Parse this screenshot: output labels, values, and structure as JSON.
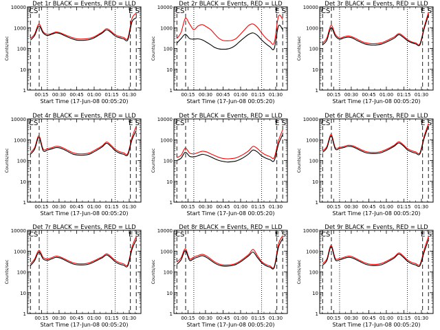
{
  "chart_data": {
    "type": "line",
    "panels": [
      {
        "title": "Det 1r BLACK = Events, RED = LLD",
        "corner_left": "CS",
        "corner_right": "E S",
        "black": [
          250,
          420,
          1200,
          560,
          420,
          480,
          560,
          520,
          420,
          340,
          285,
          250,
          245,
          250,
          270,
          320,
          420,
          560,
          780,
          600,
          400,
          330,
          290,
          260,
          1900,
          3000
        ],
        "red": [
          300,
          500,
          1500,
          640,
          480,
          520,
          620,
          570,
          470,
          390,
          330,
          290,
          285,
          290,
          310,
          360,
          470,
          620,
          900,
          680,
          460,
          380,
          340,
          310,
          2800,
          5000
        ]
      },
      {
        "title": "Det 2r BLACK = Events, RED = LLD",
        "corner_left": "CS",
        "corner_right": "E S",
        "black": [
          180,
          300,
          480,
          300,
          280,
          290,
          260,
          200,
          150,
          110,
          95,
          92,
          95,
          110,
          150,
          230,
          340,
          480,
          560,
          430,
          260,
          170,
          120,
          100,
          1200,
          800
        ],
        "red": [
          300,
          600,
          2800,
          1500,
          800,
          1200,
          1400,
          1100,
          800,
          480,
          300,
          240,
          235,
          245,
          300,
          480,
          800,
          1300,
          1500,
          1050,
          560,
          320,
          220,
          190,
          3500,
          2500
        ]
      },
      {
        "title": "Det 3r BLACK = Events, RED = LLD",
        "corner_left": "CS",
        "corner_right": "E S",
        "black": [
          150,
          250,
          1000,
          400,
          280,
          320,
          350,
          320,
          250,
          200,
          165,
          150,
          145,
          150,
          165,
          200,
          250,
          320,
          460,
          350,
          240,
          190,
          165,
          150,
          900,
          4000
        ],
        "red": [
          180,
          320,
          1300,
          480,
          320,
          360,
          400,
          360,
          290,
          230,
          190,
          175,
          170,
          175,
          190,
          230,
          290,
          370,
          520,
          400,
          270,
          210,
          185,
          170,
          1100,
          5500
        ]
      },
      {
        "title": "Det 4r BLACK = Events, RED = LLD",
        "corner_left": "CS",
        "corner_right": "E S",
        "black": [
          200,
          350,
          1300,
          300,
          320,
          360,
          420,
          400,
          330,
          260,
          205,
          185,
          180,
          185,
          205,
          260,
          340,
          460,
          680,
          480,
          300,
          230,
          200,
          190,
          1000,
          2800
        ],
        "red": [
          240,
          420,
          1550,
          360,
          370,
          410,
          480,
          460,
          380,
          300,
          240,
          215,
          210,
          215,
          235,
          300,
          390,
          520,
          780,
          560,
          350,
          270,
          235,
          220,
          1300,
          4500
        ]
      },
      {
        "title": "Det 5r BLACK = Events, RED = LLD",
        "corner_left": "CS",
        "corner_right": "E S",
        "black": [
          100,
          130,
          250,
          160,
          150,
          170,
          200,
          180,
          150,
          120,
          100,
          90,
          85,
          88,
          95,
          115,
          150,
          210,
          320,
          260,
          170,
          130,
          110,
          100,
          600,
          1800
        ],
        "red": [
          140,
          180,
          400,
          230,
          210,
          240,
          280,
          260,
          210,
          170,
          140,
          125,
          120,
          125,
          135,
          165,
          215,
          300,
          480,
          380,
          250,
          185,
          155,
          140,
          900,
          3000
        ]
      },
      {
        "title": "Det 6r BLACK = Events, RED = LLD",
        "corner_left": "CS",
        "corner_right": "E S",
        "black": [
          250,
          400,
          1500,
          360,
          380,
          420,
          480,
          460,
          380,
          300,
          245,
          220,
          215,
          220,
          245,
          300,
          380,
          500,
          700,
          520,
          330,
          260,
          225,
          210,
          1200,
          4500
        ],
        "red": [
          290,
          470,
          1800,
          420,
          430,
          470,
          540,
          520,
          430,
          340,
          280,
          250,
          245,
          250,
          280,
          340,
          430,
          560,
          800,
          590,
          380,
          300,
          260,
          240,
          1500,
          6000
        ]
      },
      {
        "title": "Det 7r BLACK = Events, RED = LLD",
        "corner_left": "CS",
        "corner_right": "E S",
        "black": [
          200,
          350,
          900,
          420,
          360,
          420,
          500,
          470,
          380,
          300,
          245,
          220,
          215,
          220,
          245,
          300,
          380,
          480,
          650,
          480,
          310,
          240,
          210,
          195,
          1200,
          3500
        ],
        "red": [
          240,
          420,
          1100,
          500,
          420,
          480,
          570,
          530,
          430,
          340,
          280,
          250,
          245,
          250,
          280,
          340,
          430,
          540,
          740,
          550,
          360,
          280,
          245,
          225,
          1600,
          5000
        ]
      },
      {
        "title": "Det 8r BLACK = Events, RED = LLD",
        "corner_left": "CS",
        "corner_right": "E S",
        "black": [
          230,
          380,
          1050,
          360,
          440,
          520,
          600,
          500,
          360,
          260,
          210,
          190,
          190,
          200,
          230,
          300,
          420,
          600,
          900,
          500,
          280,
          200,
          170,
          160,
          1500,
          4000
        ],
        "red": [
          300,
          480,
          1300,
          430,
          520,
          610,
          700,
          590,
          420,
          300,
          240,
          215,
          215,
          225,
          260,
          340,
          480,
          700,
          1200,
          620,
          320,
          230,
          195,
          180,
          2200,
          5500
        ]
      },
      {
        "title": "Det 9r BLACK = Events, RED = LLD",
        "corner_left": "CS",
        "corner_right": "E S",
        "black": [
          210,
          350,
          1600,
          380,
          380,
          440,
          500,
          470,
          380,
          300,
          240,
          210,
          200,
          205,
          225,
          280,
          360,
          480,
          720,
          520,
          330,
          250,
          215,
          200,
          900,
          3500
        ],
        "red": [
          250,
          420,
          1900,
          450,
          440,
          500,
          570,
          540,
          430,
          340,
          275,
          240,
          230,
          235,
          260,
          320,
          410,
          540,
          820,
          600,
          380,
          290,
          250,
          230,
          1200,
          5000
        ]
      }
    ],
    "xlabel": "Start Time (17-Jun-08 00:05:20)",
    "ylabel": "Counts/sec",
    "xtick_labels": [
      "00:15",
      "00:30",
      "00:45",
      "01:00",
      "01:15",
      "01:30"
    ],
    "xtick_minutes": [
      15,
      30,
      45,
      60,
      75,
      90
    ],
    "xlim_minutes": [
      3,
      100
    ],
    "ytick_labels": [
      "1",
      "10",
      "100",
      "1000",
      "10000"
    ],
    "ylim": [
      1,
      10000
    ],
    "yscale": "log",
    "dashed_lines_minutes": [
      5.5,
      13,
      91,
      96
    ],
    "dotted_lines_minutes": [
      20,
      78
    ],
    "series_colors": {
      "black": "#000000",
      "red": "#ff0000"
    }
  }
}
